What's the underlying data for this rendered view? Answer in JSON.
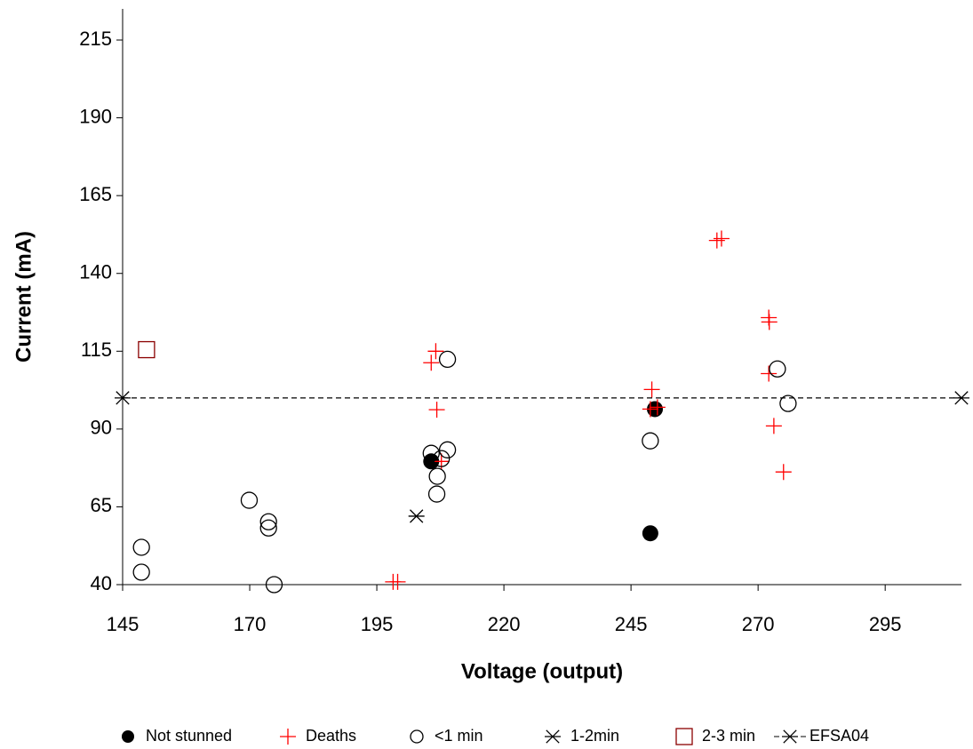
{
  "chart_data": {
    "type": "scatter",
    "x_label": "Voltage (output)",
    "y_label": "Current (mA)",
    "xlim": [
      145,
      310
    ],
    "ylim": [
      40,
      225
    ],
    "xticks": [
      145,
      170,
      195,
      220,
      245,
      270,
      295
    ],
    "yticks": [
      40,
      65,
      90,
      115,
      140,
      165,
      190,
      215
    ],
    "grid": false,
    "legend": "bottom",
    "series": [
      {
        "name": "Not stunned",
        "color": "#000000",
        "marker": "filled-circle",
        "x": [
          205.7,
          249.7,
          248.8
        ],
        "values": [
          79.6,
          96.4,
          56.5
        ]
      },
      {
        "name": "Deaths",
        "color": "#ff0000",
        "marker": "plus",
        "x": [
          199.1,
          198.2,
          206.6,
          205.7,
          206.8,
          207.7,
          249.1,
          248.8,
          250.2,
          261.9,
          262.8,
          272.1,
          272.2,
          272.1,
          273.1,
          275.0
        ],
        "values": [
          40.9,
          40.9,
          115,
          111.3,
          96.2,
          79.6,
          102.7,
          96.4,
          97,
          150.6,
          151.2,
          125.8,
          124.4,
          107.8,
          91,
          76.2
        ]
      },
      {
        "name": "<1 min",
        "color": "#000000",
        "marker": "circle",
        "x": [
          148.7,
          148.7,
          169.9,
          173.7,
          173.7,
          174.8,
          205.7,
          206.9,
          206.8,
          207.7,
          208.9,
          208.9,
          248.8,
          273.8,
          275.9
        ],
        "values": [
          52,
          44,
          67.1,
          60.2,
          58.2,
          40,
          82.2,
          74.8,
          69.1,
          80.5,
          83.3,
          112.4,
          86.2,
          109.3,
          98.2
        ]
      },
      {
        "name": "1-2min",
        "color": "#000000",
        "marker": "asterisk",
        "x": [
          202.8
        ],
        "values": [
          62
        ]
      },
      {
        "name": "2-3 min",
        "color": "#8b0000",
        "marker": "square",
        "x": [
          149.7
        ],
        "values": [
          115.5
        ]
      },
      {
        "name": "EFSA04",
        "color": "#000000",
        "marker": "asterisk",
        "line": "dashed",
        "x": [
          145,
          310
        ],
        "values": [
          100,
          100
        ]
      }
    ]
  }
}
